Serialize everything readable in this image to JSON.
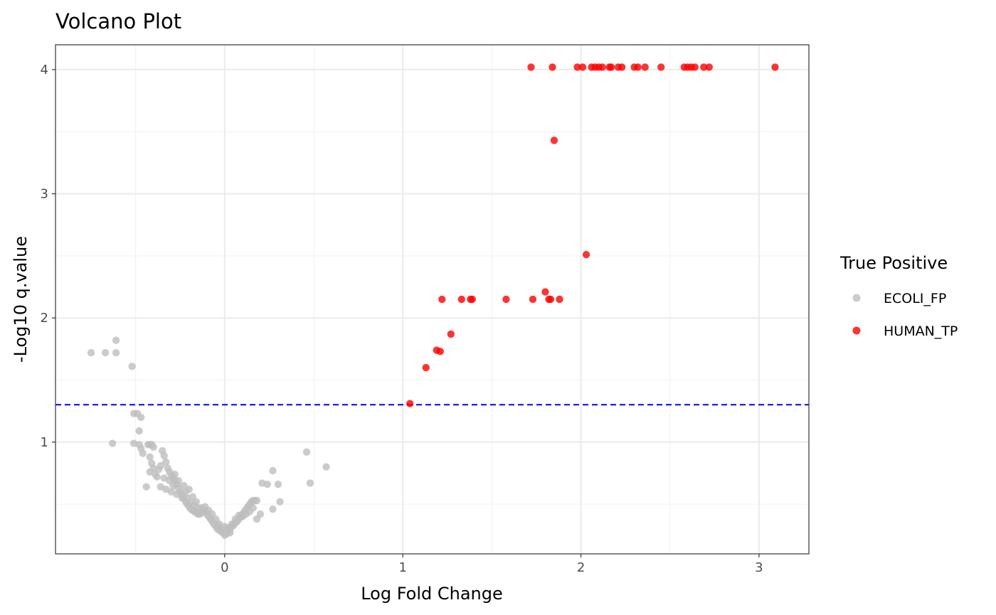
{
  "chart_data": {
    "type": "scatter",
    "title": "Volcano Plot",
    "xlabel": "Log Fold Change",
    "ylabel": "-Log10 q.value",
    "xlim": [
      -0.95,
      3.28
    ],
    "ylim": [
      0.1,
      4.2
    ],
    "x_ticks": [
      0,
      1,
      2,
      3
    ],
    "x_tick_labels": [
      "0",
      "1",
      "2",
      "3"
    ],
    "y_ticks": [
      1,
      2,
      3,
      4
    ],
    "y_tick_labels": [
      "1",
      "2",
      "3",
      "4"
    ],
    "threshold_line": {
      "y": 1.301,
      "color": "#0000ff",
      "style": "dashed"
    },
    "grid": true,
    "legend": {
      "title": "True Positive",
      "position": "right"
    },
    "series": [
      {
        "name": "ECOLI_FP",
        "color": "#bebebe",
        "points": [
          [
            -0.75,
            1.72
          ],
          [
            -0.67,
            1.72
          ],
          [
            -0.61,
            1.82
          ],
          [
            -0.61,
            1.72
          ],
          [
            -0.52,
            1.61
          ],
          [
            -0.63,
            0.99
          ],
          [
            -0.51,
            1.23
          ],
          [
            -0.49,
            1.23
          ],
          [
            -0.47,
            1.2
          ],
          [
            -0.48,
            1.09
          ],
          [
            -0.51,
            0.99
          ],
          [
            -0.48,
            0.98
          ],
          [
            -0.47,
            0.95
          ],
          [
            -0.46,
            0.91
          ],
          [
            -0.43,
            0.98
          ],
          [
            -0.42,
            0.98
          ],
          [
            -0.41,
            0.98
          ],
          [
            -0.4,
            0.96
          ],
          [
            -0.42,
            0.88
          ],
          [
            -0.41,
            0.83
          ],
          [
            -0.42,
            0.76
          ],
          [
            -0.4,
            0.79
          ],
          [
            -0.39,
            0.74
          ],
          [
            -0.38,
            0.72
          ],
          [
            -0.37,
            0.78
          ],
          [
            -0.36,
            0.81
          ],
          [
            -0.35,
            0.93
          ],
          [
            -0.34,
            0.89
          ],
          [
            -0.33,
            0.84
          ],
          [
            -0.32,
            0.79
          ],
          [
            -0.31,
            0.76
          ],
          [
            -0.3,
            0.73
          ],
          [
            -0.29,
            0.71
          ],
          [
            -0.28,
            0.69
          ],
          [
            -0.27,
            0.66
          ],
          [
            -0.26,
            0.63
          ],
          [
            -0.25,
            0.6
          ],
          [
            -0.24,
            0.58
          ],
          [
            -0.23,
            0.55
          ],
          [
            -0.22,
            0.52
          ],
          [
            -0.21,
            0.5
          ],
          [
            -0.2,
            0.48
          ],
          [
            -0.19,
            0.46
          ],
          [
            -0.18,
            0.45
          ],
          [
            -0.17,
            0.44
          ],
          [
            -0.16,
            0.43
          ],
          [
            -0.15,
            0.42
          ],
          [
            -0.14,
            0.42
          ],
          [
            -0.13,
            0.43
          ],
          [
            -0.12,
            0.45
          ],
          [
            -0.11,
            0.44
          ],
          [
            -0.1,
            0.42
          ],
          [
            -0.09,
            0.4
          ],
          [
            -0.08,
            0.38
          ],
          [
            -0.07,
            0.36
          ],
          [
            -0.06,
            0.34
          ],
          [
            -0.05,
            0.32
          ],
          [
            -0.04,
            0.3
          ],
          [
            -0.03,
            0.29
          ],
          [
            -0.02,
            0.28
          ],
          [
            -0.01,
            0.27
          ],
          [
            0.0,
            0.25
          ],
          [
            0.01,
            0.26
          ],
          [
            0.02,
            0.28
          ],
          [
            0.03,
            0.3
          ],
          [
            0.04,
            0.32
          ],
          [
            0.05,
            0.33
          ],
          [
            0.06,
            0.35
          ],
          [
            0.07,
            0.36
          ],
          [
            0.08,
            0.38
          ],
          [
            0.09,
            0.4
          ],
          [
            0.1,
            0.42
          ],
          [
            0.11,
            0.44
          ],
          [
            0.12,
            0.46
          ],
          [
            0.13,
            0.48
          ],
          [
            0.14,
            0.5
          ],
          [
            0.15,
            0.52
          ],
          [
            0.16,
            0.53
          ],
          [
            0.17,
            0.53
          ],
          [
            0.18,
            0.53
          ],
          [
            -0.44,
            0.64
          ],
          [
            -0.36,
            0.64
          ],
          [
            -0.33,
            0.62
          ],
          [
            -0.3,
            0.6
          ],
          [
            -0.27,
            0.58
          ],
          [
            -0.24,
            0.55
          ],
          [
            -0.22,
            0.6
          ],
          [
            -0.2,
            0.62
          ],
          [
            -0.18,
            0.56
          ],
          [
            -0.16,
            0.52
          ],
          [
            -0.26,
            0.69
          ],
          [
            -0.28,
            0.74
          ],
          [
            -0.31,
            0.69
          ],
          [
            -0.34,
            0.71
          ],
          [
            -0.29,
            0.65
          ],
          [
            -0.23,
            0.65
          ],
          [
            -0.21,
            0.55
          ],
          [
            -0.19,
            0.51
          ],
          [
            -0.17,
            0.49
          ],
          [
            -0.15,
            0.47
          ],
          [
            -0.13,
            0.47
          ],
          [
            -0.11,
            0.48
          ],
          [
            -0.09,
            0.45
          ],
          [
            -0.07,
            0.42
          ],
          [
            -0.05,
            0.38
          ],
          [
            -0.03,
            0.34
          ],
          [
            0.02,
            0.31
          ],
          [
            0.04,
            0.34
          ],
          [
            0.06,
            0.38
          ],
          [
            0.08,
            0.41
          ],
          [
            0.1,
            0.4
          ],
          [
            0.12,
            0.42
          ],
          [
            0.14,
            0.44
          ],
          [
            0.16,
            0.47
          ],
          [
            0.18,
            0.38
          ],
          [
            0.2,
            0.42
          ],
          [
            0.21,
            0.67
          ],
          [
            0.24,
            0.66
          ],
          [
            0.27,
            0.46
          ],
          [
            0.27,
            0.77
          ],
          [
            0.3,
            0.66
          ],
          [
            0.31,
            0.52
          ],
          [
            0.46,
            0.92
          ],
          [
            0.48,
            0.67
          ],
          [
            0.57,
            0.8
          ],
          [
            -0.02,
            0.3
          ],
          [
            0.0,
            0.32
          ],
          [
            0.01,
            0.29
          ],
          [
            -0.04,
            0.33
          ],
          [
            0.03,
            0.27
          ]
        ]
      },
      {
        "name": "HUMAN_TP",
        "color": "#ff0000",
        "points": [
          [
            1.04,
            1.31
          ],
          [
            1.13,
            1.6
          ],
          [
            1.19,
            1.74
          ],
          [
            1.21,
            1.73
          ],
          [
            1.27,
            1.87
          ],
          [
            1.22,
            2.15
          ],
          [
            1.33,
            2.15
          ],
          [
            1.38,
            2.15
          ],
          [
            1.39,
            2.15
          ],
          [
            1.58,
            2.15
          ],
          [
            1.73,
            2.15
          ],
          [
            1.8,
            2.21
          ],
          [
            1.82,
            2.15
          ],
          [
            1.83,
            2.15
          ],
          [
            1.88,
            2.15
          ],
          [
            2.03,
            2.51
          ],
          [
            1.85,
            3.43
          ],
          [
            1.72,
            4.02
          ],
          [
            1.84,
            4.02
          ],
          [
            1.98,
            4.02
          ],
          [
            2.01,
            4.02
          ],
          [
            2.06,
            4.02
          ],
          [
            2.08,
            4.02
          ],
          [
            2.1,
            4.02
          ],
          [
            2.12,
            4.02
          ],
          [
            2.16,
            4.02
          ],
          [
            2.17,
            4.02
          ],
          [
            2.21,
            4.02
          ],
          [
            2.23,
            4.02
          ],
          [
            2.3,
            4.02
          ],
          [
            2.32,
            4.02
          ],
          [
            2.36,
            4.02
          ],
          [
            2.45,
            4.02
          ],
          [
            2.58,
            4.02
          ],
          [
            2.6,
            4.02
          ],
          [
            2.62,
            4.02
          ],
          [
            2.64,
            4.02
          ],
          [
            2.69,
            4.02
          ],
          [
            2.72,
            4.02
          ],
          [
            3.09,
            4.02
          ]
        ]
      }
    ]
  }
}
